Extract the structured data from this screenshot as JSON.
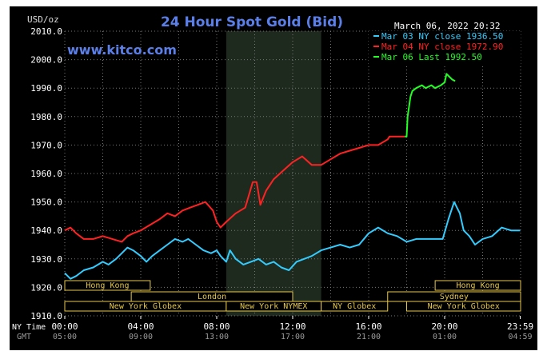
{
  "chart_data": {
    "type": "line",
    "title": "24 Hour Spot Gold (Bid)",
    "unit_label": "USD/oz",
    "timestamp": "March 06, 2022 20:32",
    "watermark": "www.kitco.com",
    "ylim": [
      1910,
      2010
    ],
    "y_ticks": [
      "2010.0",
      "2000.0",
      "1990.0",
      "1980.0",
      "1970.0",
      "1960.0",
      "1950.0",
      "1940.0",
      "1930.0",
      "1920.0",
      "1910.0"
    ],
    "x_row_labels": {
      "ny": "NY Time",
      "gmt": "GMT"
    },
    "x_ticks_ny": [
      "00:00",
      "04:00",
      "08:00",
      "12:00",
      "16:00",
      "20:00",
      "23:59"
    ],
    "x_ticks_gmt": [
      "05:00",
      "09:00",
      "13:00",
      "17:00",
      "21:00",
      "01:00",
      "04:59"
    ],
    "grid": true,
    "legend_position": "top-right",
    "legend": [
      {
        "text": "Mar 03 NY close 1936.50",
        "color": "#33ccff"
      },
      {
        "text": "Mar 04 NY close 1972.90",
        "color": "#ff2222"
      },
      {
        "text": "Mar 06 Last 1992.50",
        "color": "#22ff22"
      }
    ],
    "session_shading": {
      "start_hour": 8.5,
      "end_hour": 13.5
    },
    "sessions": [
      {
        "label": "Hong Kong",
        "row": 1,
        "start": 0,
        "end": 4.5
      },
      {
        "label": "Hong Kong",
        "row": 1,
        "start": 19.5,
        "end": 24
      },
      {
        "label": "London",
        "row": 2,
        "start": 3.5,
        "end": 12
      },
      {
        "label": "Sydney",
        "row": 2,
        "start": 17.0,
        "end": 24
      },
      {
        "label": "New York Globex",
        "row": 3,
        "start": 0,
        "end": 8.5
      },
      {
        "label": "New York NYMEX",
        "row": 3,
        "start": 8.5,
        "end": 13.5
      },
      {
        "label": "NY Globex",
        "row": 3,
        "start": 13.5,
        "end": 17.0
      },
      {
        "label": "New York Globex",
        "row": 3,
        "start": 18.0,
        "end": 24
      }
    ],
    "series": [
      {
        "name": "Mar 03",
        "color": "#33ccff",
        "x": [
          0,
          0.3,
          0.6,
          1,
          1.5,
          2,
          2.3,
          2.7,
          3,
          3.3,
          3.6,
          4,
          4.3,
          4.6,
          5,
          5.4,
          5.8,
          6.2,
          6.5,
          6.9,
          7.3,
          7.7,
          8,
          8.2,
          8.5,
          8.7,
          9,
          9.4,
          9.8,
          10.2,
          10.6,
          11,
          11.4,
          11.8,
          12.2,
          12.6,
          13,
          13.5,
          14,
          14.5,
          15,
          15.5,
          16,
          16.5,
          17,
          17.5,
          18,
          18.5,
          19,
          19.3,
          19.6,
          19.9,
          20.2,
          20.5,
          20.8,
          21,
          21.3,
          21.6,
          22,
          22.5,
          23,
          23.5,
          23.98
        ],
        "values": [
          1925,
          1923,
          1924,
          1926,
          1927,
          1929,
          1928,
          1930,
          1932,
          1934,
          1933,
          1931,
          1929,
          1931,
          1933,
          1935,
          1937,
          1936,
          1937,
          1935,
          1933,
          1932,
          1933,
          1931,
          1929,
          1933,
          1930,
          1928,
          1929,
          1930,
          1928,
          1929,
          1927,
          1926,
          1929,
          1930,
          1931,
          1933,
          1934,
          1935,
          1934,
          1935,
          1939,
          1941,
          1939,
          1938,
          1936,
          1937,
          1937,
          1937,
          1937,
          1937,
          1944,
          1950,
          1946,
          1940,
          1938,
          1935,
          1937,
          1938,
          1941,
          1940,
          1940
        ]
      },
      {
        "name": "Mar 04",
        "color": "#ff2222",
        "x": [
          0,
          0.3,
          0.6,
          1,
          1.5,
          2,
          2.5,
          3,
          3.3,
          3.6,
          4,
          4.5,
          5,
          5.4,
          5.8,
          6.2,
          6.6,
          7,
          7.4,
          7.8,
          8,
          8.2,
          8.5,
          9,
          9.5,
          9.9,
          10.1,
          10.3,
          10.6,
          11,
          11.5,
          12,
          12.5,
          13,
          13.5,
          14,
          14.5,
          15,
          15.5,
          16,
          16.5,
          17,
          17.1,
          17.9
        ],
        "values": [
          1940,
          1941,
          1939,
          1937,
          1937,
          1938,
          1937,
          1936,
          1938,
          1939,
          1940,
          1942,
          1944,
          1946,
          1945,
          1947,
          1948,
          1949,
          1950,
          1947,
          1943,
          1941,
          1943,
          1946,
          1948,
          1957,
          1957,
          1949,
          1954,
          1958,
          1961,
          1964,
          1966,
          1963,
          1963,
          1965,
          1967,
          1968,
          1969,
          1970,
          1970,
          1972,
          1973,
          1973
        ]
      },
      {
        "name": "Mar 06",
        "color": "#22ff22",
        "x": [
          17.9,
          18.0,
          18.05,
          18.2,
          18.3,
          18.5,
          18.8,
          19,
          19.3,
          19.5,
          19.8,
          20,
          20.1,
          20.25,
          20.4,
          20.55
        ],
        "values": [
          1973,
          1973,
          1980,
          1987,
          1989,
          1990,
          1991,
          1990,
          1991,
          1990,
          1991,
          1992,
          1995,
          1994,
          1993,
          1992.5
        ]
      }
    ]
  }
}
